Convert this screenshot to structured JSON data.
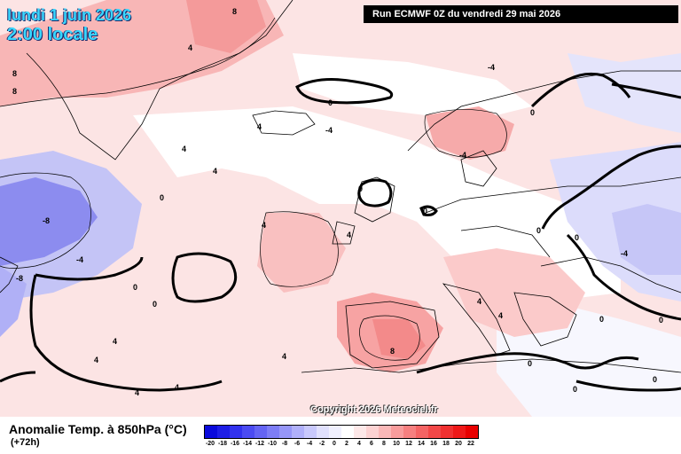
{
  "header": {
    "date_line": "lundi 1 juin 2026",
    "time_line": "2:00 locale",
    "run_info": "Run ECMWF 0Z du vendredi 29 mai 2026"
  },
  "copyright": "Copyright 2026 Meteociel.fr",
  "legend": {
    "title": "Anomalie Temp. à 850hPa (°C)",
    "lead_time": "(+72h)",
    "colors": [
      "#0a0adc",
      "#1e1ee6",
      "#3232ee",
      "#4b4bf2",
      "#6464f4",
      "#7d7df6",
      "#9696f8",
      "#b0b0fa",
      "#c8c8fc",
      "#e0e0fd",
      "#f0f0fe",
      "#ffffff",
      "#fde8e8",
      "#fcd2d2",
      "#fab8b8",
      "#f89c9c",
      "#f68080",
      "#f46464",
      "#f24848",
      "#f03030",
      "#ee1818",
      "#e80000"
    ],
    "tick_values": [
      "-20",
      "-18",
      "-16",
      "-14",
      "-12",
      "-10",
      "-8",
      "-6",
      "-4",
      "-2",
      "0",
      "2",
      "4",
      "6",
      "8",
      "10",
      "12",
      "14",
      "16",
      "18",
      "20",
      "22"
    ]
  },
  "map_labels": [
    {
      "text": "8",
      "id": "label-8-nw"
    },
    {
      "text": "8",
      "id": "label-8-w"
    },
    {
      "text": "8",
      "id": "label-8-greenland"
    },
    {
      "text": "4",
      "id": "label-4-greenland"
    },
    {
      "text": "-4",
      "id": "label-neg4-north"
    },
    {
      "text": "0",
      "id": "label-0-norwegian-sea"
    },
    {
      "text": "0",
      "id": "label-0-finland"
    },
    {
      "text": "4",
      "id": "label-4-iceland"
    },
    {
      "text": "-4",
      "id": "label-neg4-iceland"
    },
    {
      "text": "4",
      "id": "label-4-atlantic-a"
    },
    {
      "text": "4",
      "id": "label-4-atlantic-b"
    },
    {
      "text": "-4",
      "id": "label-neg4-norway"
    },
    {
      "text": "0",
      "id": "label-0-atlantic"
    },
    {
      "text": "-8",
      "id": "label-neg8-labrador"
    },
    {
      "text": "-4",
      "id": "label-neg4-labrador"
    },
    {
      "text": "-8",
      "id": "label-neg8-canada"
    },
    {
      "text": "0",
      "id": "label-0-ireland"
    },
    {
      "text": "0",
      "id": "label-0-netherlands"
    },
    {
      "text": "4",
      "id": "label-4-irish-sea"
    },
    {
      "text": "4",
      "id": "label-4-biscay"
    },
    {
      "text": "0",
      "id": "label-0-poland"
    },
    {
      "text": "0",
      "id": "label-0-ukraine"
    },
    {
      "text": "-4",
      "id": "label-neg4-russia"
    },
    {
      "text": "0",
      "id": "label-0-east"
    },
    {
      "text": "0",
      "id": "label-0-balkan"
    },
    {
      "text": "4",
      "id": "label-4-italy"
    },
    {
      "text": "4",
      "id": "label-4-adriatic"
    },
    {
      "text": "0",
      "id": "label-0-azores-a"
    },
    {
      "text": "0",
      "id": "label-0-azores-b"
    },
    {
      "text": "4",
      "id": "label-4-madeira"
    },
    {
      "text": "4",
      "id": "label-4-morocco"
    },
    {
      "text": "8",
      "id": "label-8-spain"
    },
    {
      "text": "4",
      "id": "label-4-algeria"
    },
    {
      "text": "4",
      "id": "label-4-sahara"
    },
    {
      "text": "0",
      "id": "label-0-libya"
    },
    {
      "text": "0",
      "id": "label-0-egypt"
    },
    {
      "text": "0",
      "id": "label-0-turkey"
    },
    {
      "text": "4",
      "id": "label-4-canary"
    }
  ]
}
